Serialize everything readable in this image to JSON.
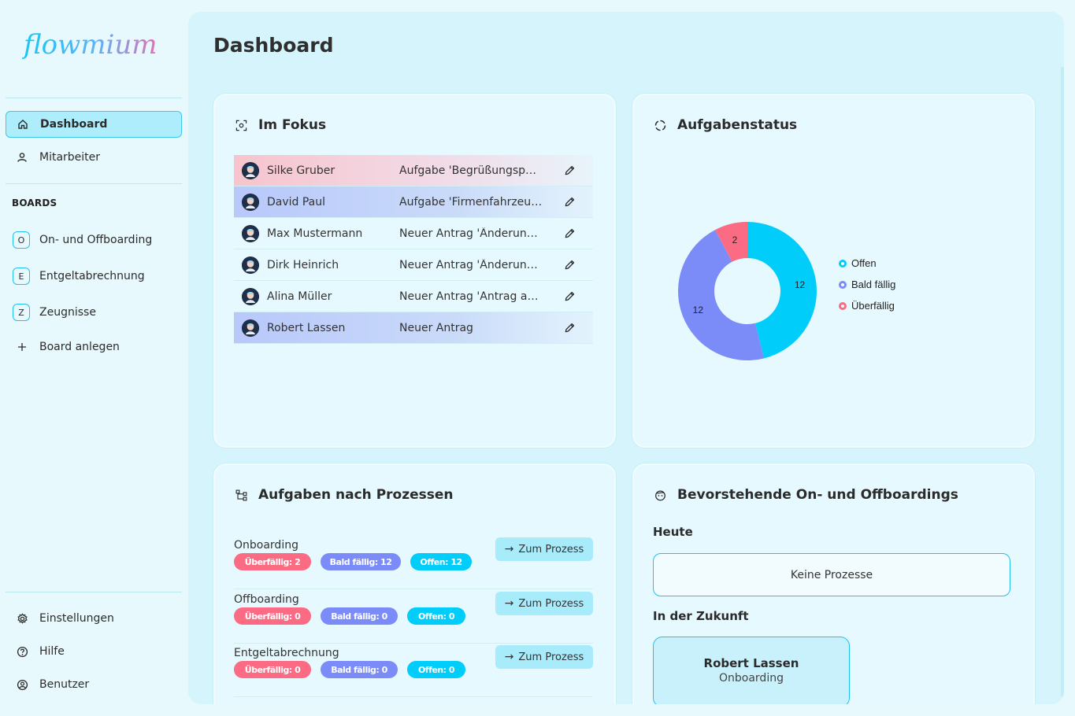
{
  "brand": {
    "name": "flowmium"
  },
  "sidebar": {
    "nav": [
      {
        "label": "Dashboard",
        "icon": "home-icon",
        "active": true
      },
      {
        "label": "Mitarbeiter",
        "icon": "user-icon",
        "active": false
      }
    ],
    "boards_label": "BOARDS",
    "boards": [
      {
        "badge": "O",
        "label": "On- und Offboarding"
      },
      {
        "badge": "E",
        "label": "Entgeltabrechnung"
      },
      {
        "badge": "Z",
        "label": "Zeugnisse"
      }
    ],
    "add_board_label": "Board anlegen",
    "bottom": [
      {
        "label": "Einstellungen",
        "icon": "gear-icon"
      },
      {
        "label": "Hilfe",
        "icon": "help-icon"
      },
      {
        "label": "Benutzer",
        "icon": "account-icon"
      }
    ]
  },
  "page": {
    "title": "Dashboard"
  },
  "focus": {
    "title": "Im Fokus",
    "rows": [
      {
        "name": "Silke Gruber",
        "task": "Aufgabe 'Begrüßungspaket vorbereiten'",
        "status": "overdue"
      },
      {
        "name": "David Paul",
        "task": "Aufgabe 'Firmenfahrzeug zurückgeben'",
        "status": "due"
      },
      {
        "name": "Max Mustermann",
        "task": "Neuer Antrag 'Änderung Bankverbindung'",
        "status": "none"
      },
      {
        "name": "Dirk Heinrich",
        "task": "Neuer Antrag 'Änderung Adresse'",
        "status": "none"
      },
      {
        "name": "Alina Müller",
        "task": "Neuer Antrag 'Antrag auf Urlaub'",
        "status": "none"
      },
      {
        "name": "Robert Lassen",
        "task": "Neuer Antrag",
        "status": "due"
      }
    ]
  },
  "status_card": {
    "title": "Aufgabenstatus"
  },
  "chart_data": {
    "type": "pie",
    "donut": true,
    "categories": [
      "Offen",
      "Bald fällig",
      "Überfällig"
    ],
    "values": [
      12,
      12,
      2
    ],
    "colors": [
      "#00cdf9",
      "#7b8bf7",
      "#fb6c84"
    ],
    "legend": "right"
  },
  "processes": {
    "title": "Aufgaben nach Prozessen",
    "button_label": "Zum Prozess",
    "rows": [
      {
        "name": "Onboarding",
        "overdue": "Überfällig: 2",
        "due": "Bald fällig: 12",
        "open": "Offen: 12"
      },
      {
        "name": "Offboarding",
        "overdue": "Überfällig: 0",
        "due": "Bald fällig: 0",
        "open": "Offen: 0"
      },
      {
        "name": "Entgeltabrechnung",
        "overdue": "Überfällig: 0",
        "due": "Bald fällig: 0",
        "open": "Offen: 0"
      }
    ]
  },
  "upcoming": {
    "title": "Bevorstehende On- und Offboardings",
    "today_label": "Heute",
    "today_empty": "Keine Prozesse",
    "future_label": "In der Zukunft",
    "future": [
      {
        "name": "Robert Lassen",
        "type": "Onboarding"
      }
    ]
  }
}
